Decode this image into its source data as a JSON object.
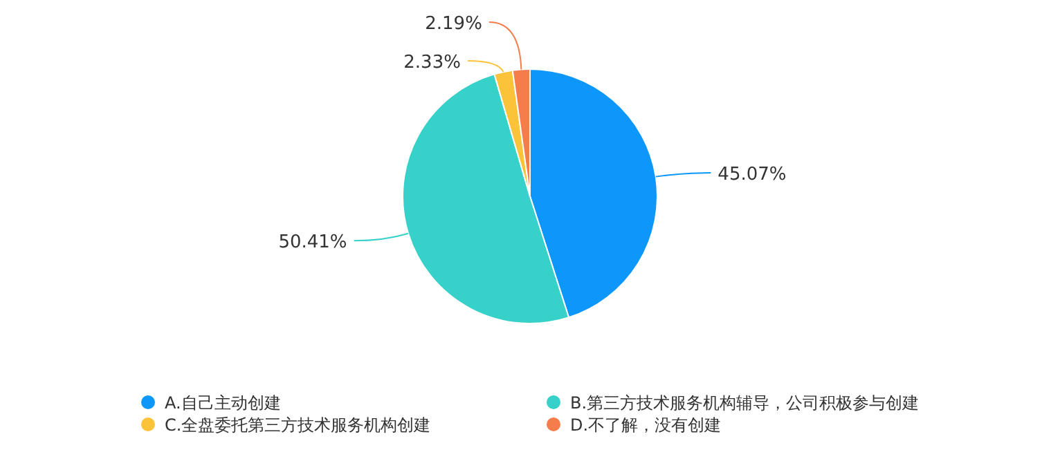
{
  "chart_data": {
    "type": "pie",
    "categories": [
      "A.自己主动创建",
      "B.第三方技术服务机构辅导，公司积极参与创建",
      "C.全盘委托第三方技术服务机构创建",
      "D.不了解，没有创建"
    ],
    "values": [
      45.07,
      50.41,
      2.33,
      2.19
    ],
    "colors": [
      "#0e97fa",
      "#36d1c9",
      "#fbc33a",
      "#f57c4b"
    ],
    "value_labels": [
      "45.07%",
      "50.41%",
      "2.33%",
      "2.19%"
    ],
    "legend": "bottom"
  }
}
